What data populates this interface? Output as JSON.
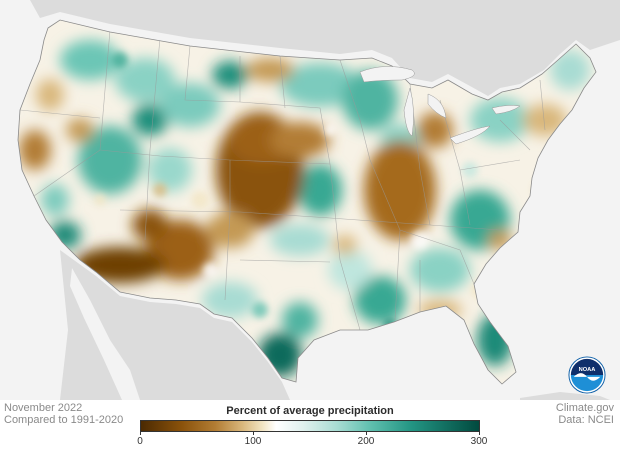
{
  "meta": {
    "date": "November 2022",
    "baseline": "Compared to 1991-2020",
    "source": "Climate.gov",
    "data_credit": "Data: NCEI"
  },
  "legend": {
    "title": "Percent of average precipitation",
    "min": 0,
    "max": 300,
    "ticks": [
      "0",
      "100",
      "200",
      "300"
    ],
    "colors": {
      "very_dry": "#4b2a02",
      "dry": "#b27d34",
      "near_normal": "#ffffff",
      "wet": "#5fbfae",
      "very_wet": "#014a3f"
    }
  },
  "logo": {
    "text": "NOAA",
    "icon": "noaa-logo-icon"
  }
}
